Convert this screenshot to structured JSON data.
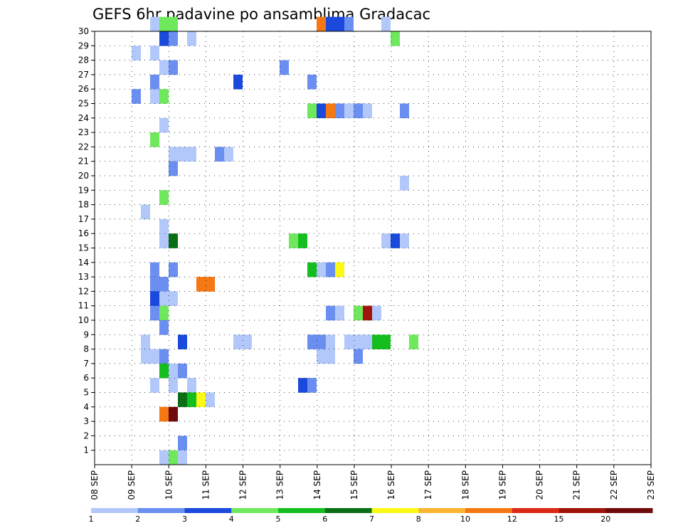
{
  "chart_data": {
    "type": "heatmap",
    "title": "GEFS 6hr padavine po ansamblima Gradacac",
    "xlabel": "",
    "ylabel": "",
    "x_tick_labels": [
      "08 SEP",
      "09 SEP",
      "10 SEP",
      "11 SEP",
      "12 SEP",
      "13 SEP",
      "14 SEP",
      "15 SEP",
      "16 SEP",
      "17 SEP",
      "18 SEP",
      "19 SEP",
      "20 SEP",
      "21 SEP",
      "22 SEP",
      "23 SEP"
    ],
    "y_tick_labels": [
      "1",
      "2",
      "3",
      "4",
      "5",
      "6",
      "7",
      "8",
      "9",
      "10",
      "11",
      "12",
      "13",
      "14",
      "15",
      "16",
      "17",
      "18",
      "19",
      "20",
      "21",
      "22",
      "23",
      "24",
      "25",
      "26",
      "27",
      "28",
      "29",
      "30"
    ],
    "xlim": [
      0,
      60
    ],
    "ylim": [
      0,
      30
    ],
    "grid": true,
    "legend_placement": "bottom",
    "color_scale": {
      "labels": [
        "1",
        "2",
        "3",
        "4",
        "5",
        "6",
        "7",
        "8",
        "10",
        "12",
        "15",
        "20"
      ],
      "colors": [
        "#b3c8fa",
        "#6a8ff0",
        "#1a49dc",
        "#6fe85d",
        "#14be1e",
        "#0a6e14",
        "#fafa14",
        "#fab432",
        "#f57814",
        "#dc2814",
        "#a0140a",
        "#6e0a0a"
      ]
    },
    "cells": [
      [
        6,
        30,
        1
      ],
      [
        7,
        30,
        4
      ],
      [
        8,
        30,
        4
      ],
      [
        24,
        30,
        10
      ],
      [
        25,
        30,
        3
      ],
      [
        26,
        30,
        3
      ],
      [
        27,
        30,
        2
      ],
      [
        31,
        30,
        1
      ],
      [
        7,
        29,
        3
      ],
      [
        8,
        29,
        2
      ],
      [
        10,
        29,
        1
      ],
      [
        32,
        29,
        4
      ],
      [
        4,
        28,
        1
      ],
      [
        6,
        28,
        1
      ],
      [
        7,
        27,
        1
      ],
      [
        8,
        27,
        2
      ],
      [
        20,
        27,
        2
      ],
      [
        6,
        26,
        2
      ],
      [
        15,
        26,
        3
      ],
      [
        23,
        26,
        2
      ],
      [
        4,
        25,
        2
      ],
      [
        6,
        25,
        1
      ],
      [
        7,
        25,
        4
      ],
      [
        23,
        24,
        4
      ],
      [
        24,
        24,
        3
      ],
      [
        25,
        24,
        10
      ],
      [
        26,
        24,
        2
      ],
      [
        27,
        24,
        1
      ],
      [
        28,
        24,
        2
      ],
      [
        29,
        24,
        1
      ],
      [
        33,
        24,
        2
      ],
      [
        7,
        23,
        1
      ],
      [
        6,
        22,
        4
      ],
      [
        8,
        21,
        1
      ],
      [
        9,
        21,
        1
      ],
      [
        10,
        21,
        1
      ],
      [
        13,
        21,
        2
      ],
      [
        14,
        21,
        1
      ],
      [
        8,
        20,
        2
      ],
      [
        33,
        19,
        1
      ],
      [
        7,
        18,
        4
      ],
      [
        5,
        17,
        1
      ],
      [
        7,
        16,
        1
      ],
      [
        7,
        15,
        1
      ],
      [
        8,
        15,
        6
      ],
      [
        21,
        15,
        4
      ],
      [
        22,
        15,
        5
      ],
      [
        31,
        15,
        1
      ],
      [
        32,
        15,
        3
      ],
      [
        33,
        15,
        1
      ],
      [
        23,
        13,
        5
      ],
      [
        24,
        13,
        1
      ],
      [
        25,
        13,
        2
      ],
      [
        26,
        13,
        7
      ],
      [
        6,
        13,
        2
      ],
      [
        8,
        13,
        2
      ],
      [
        6,
        12,
        2
      ],
      [
        7,
        12,
        2
      ],
      [
        11,
        12,
        10
      ],
      [
        12,
        12,
        10
      ],
      [
        6,
        11,
        3
      ],
      [
        7,
        11,
        1
      ],
      [
        8,
        11,
        1
      ],
      [
        6,
        10,
        2
      ],
      [
        7,
        10,
        4
      ],
      [
        25,
        10,
        2
      ],
      [
        26,
        10,
        1
      ],
      [
        28,
        10,
        4
      ],
      [
        29,
        10,
        15
      ],
      [
        30,
        10,
        1
      ],
      [
        7,
        9,
        2
      ],
      [
        5,
        8,
        1
      ],
      [
        9,
        8,
        3
      ],
      [
        15,
        8,
        1
      ],
      [
        16,
        8,
        1
      ],
      [
        23,
        8,
        2
      ],
      [
        24,
        8,
        2
      ],
      [
        25,
        8,
        1
      ],
      [
        27,
        8,
        1
      ],
      [
        28,
        8,
        1
      ],
      [
        29,
        8,
        1
      ],
      [
        30,
        8,
        5
      ],
      [
        31,
        8,
        5
      ],
      [
        34,
        8,
        4
      ],
      [
        5,
        7,
        1
      ],
      [
        6,
        7,
        1
      ],
      [
        7,
        7,
        2
      ],
      [
        24,
        7,
        1
      ],
      [
        25,
        7,
        1
      ],
      [
        28,
        7,
        2
      ],
      [
        7,
        6,
        5
      ],
      [
        8,
        6,
        1
      ],
      [
        9,
        6,
        2
      ],
      [
        6,
        5,
        1
      ],
      [
        8,
        5,
        1
      ],
      [
        10,
        5,
        1
      ],
      [
        22,
        5,
        3
      ],
      [
        23,
        5,
        2
      ],
      [
        9,
        4,
        6
      ],
      [
        10,
        4,
        5
      ],
      [
        11,
        4,
        7
      ],
      [
        12,
        4,
        1
      ],
      [
        7,
        3,
        10
      ],
      [
        8,
        3,
        20
      ],
      [
        9,
        1,
        2
      ],
      [
        7,
        0,
        1
      ],
      [
        8,
        0,
        4
      ],
      [
        9,
        0,
        1
      ]
    ]
  }
}
